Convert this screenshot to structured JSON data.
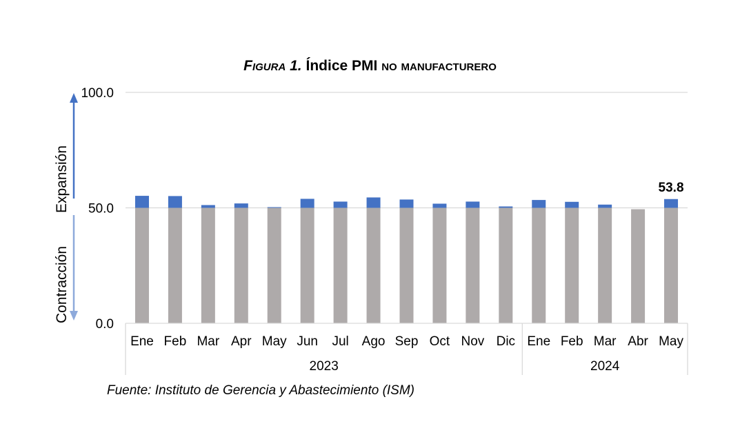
{
  "title": {
    "prefix": "Figura 1.",
    "accent": "Í",
    "main": "ndice PMI",
    "suffix": "no manufacturero"
  },
  "source": "Fuente: Instituto de Gerencia y Abastecimiento (ISM)",
  "colors": {
    "base": "#aeaaaa",
    "excess": "#4472c4",
    "grid": "#d9d9d9",
    "arrow_up": "#4472c4",
    "arrow_down": "#8eaadb"
  },
  "chart_data": {
    "type": "bar",
    "stacked": true,
    "threshold": 50,
    "ylim": [
      0,
      100
    ],
    "yticks": [
      "0.0",
      "50.0",
      "100.0"
    ],
    "ylabel_up": "Expansión",
    "ylabel_down": "Contracción",
    "categories": [
      "Ene",
      "Feb",
      "Mar",
      "Apr",
      "May",
      "Jun",
      "Jul",
      "Ago",
      "Sep",
      "Oct",
      "Nov",
      "Dic",
      "Ene",
      "Feb",
      "Mar",
      "Abr",
      "May"
    ],
    "groups": [
      {
        "label": "2023",
        "count": 12
      },
      {
        "label": "2024",
        "count": 5
      }
    ],
    "values": [
      55.2,
      55.1,
      51.2,
      51.9,
      50.3,
      53.9,
      52.7,
      54.5,
      53.6,
      51.8,
      52.7,
      50.6,
      53.4,
      52.6,
      51.4,
      49.4,
      53.8
    ],
    "data_labels": [
      {
        "index": 16,
        "text": "53.8"
      }
    ],
    "grid": true
  }
}
